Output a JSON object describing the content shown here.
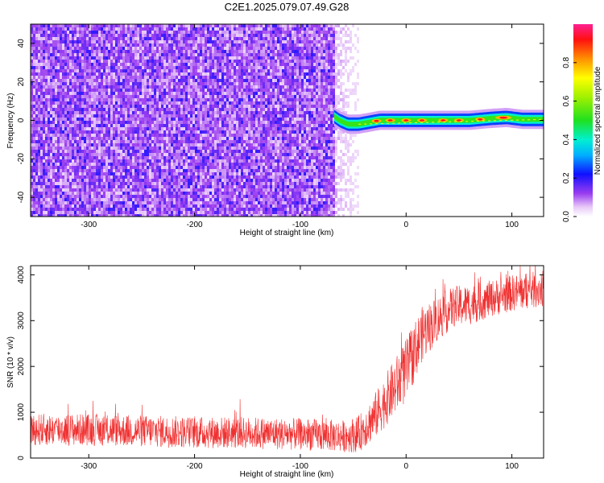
{
  "title": "C2E1.2025.079.07.49.G28",
  "chart_data": [
    {
      "type": "heatmap",
      "xlabel": "Height of straight line (km)",
      "ylabel": "Frequency (Hz)",
      "xlim": [
        -355,
        130
      ],
      "ylim": [
        -50,
        50
      ],
      "xticks": [
        -300,
        -200,
        -100,
        0,
        100
      ],
      "yticks": [
        -40,
        -20,
        0,
        20,
        40
      ],
      "noise_region_x": [
        -355,
        -68
      ],
      "transition_region_x": [
        -68,
        -45
      ],
      "tone_track": [
        {
          "x": -68,
          "freq": 2
        },
        {
          "x": -63,
          "freq": 0
        },
        {
          "x": -55,
          "freq": -2
        },
        {
          "x": -45,
          "freq": -2
        },
        {
          "x": -35,
          "freq": -1
        },
        {
          "x": -25,
          "freq": 0
        },
        {
          "x": -15,
          "freq": 0
        },
        {
          "x": 0,
          "freq": 0
        },
        {
          "x": 30,
          "freq": 0
        },
        {
          "x": 60,
          "freq": 0
        },
        {
          "x": 80,
          "freq": 1
        },
        {
          "x": 95,
          "freq": 1.5
        },
        {
          "x": 110,
          "freq": 0.5
        },
        {
          "x": 130,
          "freq": 0.5
        }
      ],
      "colorbar": {
        "label": "Normalized spectral amplitude",
        "range": [
          0,
          1
        ],
        "ticks": [
          0,
          0.2,
          0.4,
          0.6,
          0.8
        ],
        "tick_labels": [
          "0.0",
          "0.2",
          "0.4",
          "0.6",
          "0.8"
        ],
        "colormap": "rainbow"
      }
    },
    {
      "type": "line",
      "xlabel": "Height of straight line (km)",
      "ylabel": "SNR (10 * v/v)",
      "xlim": [
        -355,
        130
      ],
      "ylim": [
        0,
        4200
      ],
      "xticks": [
        -300,
        -200,
        -100,
        0,
        100
      ],
      "yticks": [
        0,
        1000,
        2000,
        3000,
        4000
      ],
      "color": "#f03030",
      "series": [
        {
          "x": [
            -355,
            -300,
            -250,
            -200,
            -150,
            -100,
            -60,
            -45,
            -30,
            -15,
            0,
            15,
            30,
            45,
            60,
            80,
            100,
            115,
            130
          ],
          "mean": [
            620,
            620,
            590,
            560,
            550,
            520,
            480,
            520,
            900,
            1400,
            1900,
            2700,
            3050,
            3300,
            3350,
            3480,
            3600,
            3650,
            3700
          ],
          "spread": [
            350,
            350,
            350,
            350,
            350,
            350,
            350,
            400,
            500,
            600,
            700,
            600,
            500,
            450,
            450,
            400,
            400,
            400,
            400
          ]
        }
      ]
    }
  ]
}
